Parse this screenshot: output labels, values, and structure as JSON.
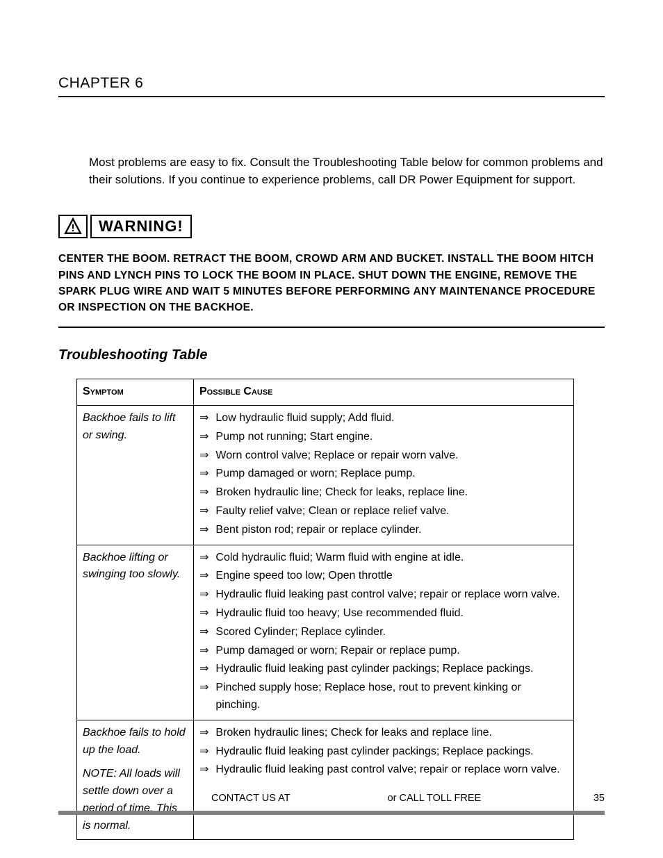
{
  "chapter": "CHAPTER 6",
  "intro": "Most problems are easy to fix. Consult the Troubleshooting Table below for common problems and their solutions. If you continue to experience problems, call DR Power Equipment for support.",
  "warning_label": "WARNING!",
  "warning_text": "CENTER THE BOOM. RETRACT THE BOOM, CROWD ARM AND BUCKET. INSTALL THE BOOM HITCH PINS AND LYNCH PINS TO LOCK THE BOOM IN PLACE. SHUT DOWN THE ENGINE, REMOVE THE SPARK PLUG WIRE AND WAIT 5 MINUTES BEFORE PERFORMING ANY MAINTENANCE PROCEDURE OR INSPECTION ON THE BACKHOE.",
  "section_title": "Troubleshooting Table",
  "table": {
    "headers": {
      "symptom": "Symptom",
      "cause": "Possible Cause"
    },
    "rows": [
      {
        "symptom": "Backhoe fails to lift or swing.",
        "note": "",
        "causes": [
          "Low hydraulic fluid supply; Add fluid.",
          "Pump not running; Start engine.",
          "Worn control valve; Replace or repair worn valve.",
          "Pump damaged or worn; Replace pump.",
          "Broken hydraulic line; Check for leaks, replace line.",
          "Faulty relief valve; Clean or replace relief valve.",
          "Bent piston rod; repair or replace cylinder."
        ]
      },
      {
        "symptom": "Backhoe lifting or swinging too slowly.",
        "note": "",
        "causes": [
          "Cold hydraulic fluid; Warm fluid with engine at idle.",
          "Engine speed too low; Open throttle",
          "Hydraulic fluid leaking past control valve; repair or replace worn valve.",
          "Hydraulic fluid too heavy; Use recommended fluid.",
          "Scored Cylinder; Replace cylinder.",
          "Pump damaged or worn; Repair or replace pump.",
          "Hydraulic fluid leaking past cylinder packings; Replace packings.",
          "Pinched supply hose; Replace hose, rout to prevent kinking or pinching."
        ]
      },
      {
        "symptom": "Backhoe fails to hold up the load.",
        "note": "NOTE: All loads will settle down over a period of time. This is normal.",
        "causes": [
          "Broken hydraulic lines; Check for leaks and replace line.",
          "Hydraulic fluid leaking past cylinder packings; Replace packings.",
          "Hydraulic fluid leaking past control valve; repair or replace worn valve."
        ]
      }
    ]
  },
  "footer": {
    "contact": "CONTACT US AT",
    "call": "or CALL TOLL FREE",
    "page": "35"
  },
  "arrow_glyph": "⇒"
}
